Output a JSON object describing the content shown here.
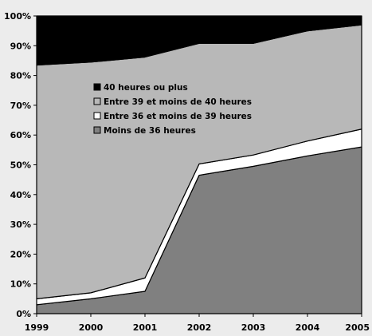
{
  "chart_data": {
    "type": "area",
    "stacked": true,
    "percent": true,
    "x": [
      "1999",
      "2000",
      "2001",
      "2002",
      "2003",
      "2004",
      "2005"
    ],
    "yticks": [
      "0%",
      "10%",
      "20%",
      "30%",
      "40%",
      "50%",
      "60%",
      "70%",
      "80%",
      "90%",
      "100%"
    ],
    "ylim": [
      0,
      100
    ],
    "legend_position": "inside-upper-left",
    "series": [
      {
        "name": "Moins de 36 heures",
        "color": "#808080",
        "values": [
          3,
          5,
          7.5,
          46.5,
          49.5,
          53,
          56
        ]
      },
      {
        "name": "Entre 36 et moins de 39 heures",
        "color": "#ffffff",
        "values": [
          2,
          2,
          4.5,
          3.8,
          3.8,
          5,
          6
        ]
      },
      {
        "name": "Entre 39 et moins de 40 heures",
        "color": "#b8b8b8",
        "values": [
          78.5,
          77.5,
          74.2,
          40.5,
          37.5,
          37,
          35
        ]
      },
      {
        "name": "40 heures ou plus",
        "color": "#000000",
        "values": [
          16.5,
          15.5,
          13.8,
          9.2,
          9.2,
          5,
          3
        ]
      }
    ],
    "legend_order": [
      3,
      2,
      1,
      0
    ]
  }
}
